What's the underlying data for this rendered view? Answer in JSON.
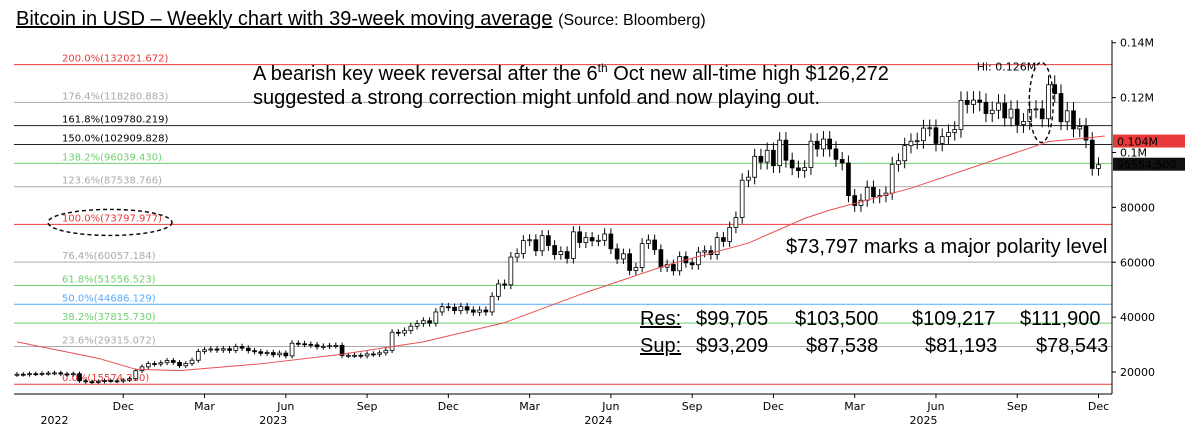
{
  "title": {
    "main": "Bitcoin in USD – Weekly chart with 39-week moving average",
    "source": "(Source: Bloomberg)"
  },
  "chart_data": {
    "type": "candlestick",
    "ylim": [
      12000,
      141000
    ],
    "y_ticks": [
      {
        "value": 140000,
        "label": "0.14M"
      },
      {
        "value": 120000,
        "label": "0.12M"
      },
      {
        "value": 100000,
        "label": "0.1M"
      },
      {
        "value": 80000,
        "label": "80000"
      },
      {
        "value": 60000,
        "label": "60000"
      },
      {
        "value": 40000,
        "label": "40000"
      },
      {
        "value": 20000,
        "label": "20000"
      }
    ],
    "x_months": [
      {
        "label": "Dec",
        "week": 17
      },
      {
        "label": "Mar",
        "week": 30
      },
      {
        "label": "Jun",
        "week": 43
      },
      {
        "label": "Sep",
        "week": 56
      },
      {
        "label": "Dec",
        "week": 69
      },
      {
        "label": "Mar",
        "week": 82
      },
      {
        "label": "Jun",
        "week": 95
      },
      {
        "label": "Sep",
        "week": 108
      },
      {
        "label": "Dec",
        "week": 121
      },
      {
        "label": "Mar",
        "week": 134
      },
      {
        "label": "Jun",
        "week": 147
      },
      {
        "label": "Sep",
        "week": 160
      },
      {
        "label": "Dec",
        "week": 173
      }
    ],
    "x_years": [
      {
        "label": "2022",
        "week": 6
      },
      {
        "label": "2023",
        "week": 41
      },
      {
        "label": "2024",
        "week": 93
      },
      {
        "label": "2025",
        "week": 145
      }
    ],
    "total_weeks": 175,
    "weekly_close": [
      19200,
      19100,
      19400,
      19300,
      19500,
      19600,
      19700,
      19300,
      19100,
      19400,
      16800,
      16500,
      16300,
      16600,
      16900,
      16800,
      16700,
      17100,
      17600,
      20500,
      21900,
      23100,
      22900,
      23400,
      24200,
      23500,
      22300,
      23100,
      24300,
      27500,
      28100,
      28400,
      28000,
      28500,
      27900,
      29300,
      28700,
      27800,
      27400,
      26800,
      27100,
      26300,
      26900,
      25900,
      30500,
      30300,
      30100,
      29900,
      29200,
      29400,
      29600,
      29700,
      26000,
      26100,
      26100,
      25900,
      26600,
      26500,
      27000,
      27900,
      34500,
      34200,
      35100,
      36700,
      37700,
      38700,
      37800,
      41900,
      43800,
      43600,
      42400,
      43800,
      42600,
      41800,
      42600,
      41900,
      47600,
      52100,
      51800,
      61900,
      63200,
      67900,
      68200,
      64200,
      69700,
      66100,
      62800,
      63900,
      61400,
      71100,
      67200,
      69000,
      67800,
      68000,
      70300,
      64900,
      61200,
      63100,
      57000,
      58100,
      66800,
      68100,
      64600,
      58200,
      59200,
      56900,
      62100,
      59800,
      59100,
      63700,
      64200,
      62800,
      69000,
      67600,
      72700,
      76300,
      89900,
      91000,
      98600,
      96500,
      100800,
      95200,
      104500,
      97200,
      94400,
      93400,
      94500,
      104100,
      101300,
      104900,
      101300,
      97500,
      96200,
      84300,
      80700,
      82600,
      87300,
      83900,
      84300,
      85200,
      95700,
      97000,
      102500,
      104100,
      104300,
      108900,
      109000,
      103300,
      105800,
      107300,
      108400,
      119000,
      117500,
      119100,
      118300,
      114200,
      115400,
      118000,
      112600,
      115800,
      110200,
      111300,
      115700,
      115900,
      112300,
      124700,
      121500,
      111200,
      115200,
      108600,
      109500,
      104500,
      94200,
      95554
    ],
    "ma_39w": {
      "weeks": [
        0,
        13,
        19,
        26,
        39,
        52,
        65,
        78,
        91,
        104,
        117,
        126,
        130,
        143,
        156,
        165,
        170,
        174
      ],
      "values": [
        31000,
        25000,
        21000,
        20500,
        23000,
        26500,
        31000,
        38000,
        49000,
        59000,
        67000,
        76000,
        79000,
        87000,
        97000,
        104000,
        105000,
        106000
      ]
    },
    "fibonacci_levels": [
      {
        "label": "200.0%(132021.672)",
        "value": 132021.672,
        "color": "#e83a3a"
      },
      {
        "label": "176.4%(118280.883)",
        "value": 118280.883,
        "color": "#aaaaaa"
      },
      {
        "label": "161.8%(109780.219)",
        "value": 109780.219,
        "color": "#222222"
      },
      {
        "label": "150.0%(102909.828)",
        "value": 102909.828,
        "color": "#222222"
      },
      {
        "label": "138.2%(96039.430)",
        "value": 96039.43,
        "color": "#6ed16e"
      },
      {
        "label": "123.6%(87538.766)",
        "value": 87538.766,
        "color": "#aaaaaa"
      },
      {
        "label": "100.0%(73797.977)",
        "value": 73797.977,
        "color": "#e83a3a"
      },
      {
        "label": "76.4%(60057.184)",
        "value": 60057.184,
        "color": "#aaaaaa"
      },
      {
        "label": "61.8%(51556.523)",
        "value": 51556.523,
        "color": "#6ed16e"
      },
      {
        "label": "50.0%(44686.129)",
        "value": 44686.129,
        "color": "#55aaff"
      },
      {
        "label": "38.2%(37815.730)",
        "value": 37815.73,
        "color": "#6ed16e"
      },
      {
        "label": "23.6%(29315.072)",
        "value": 29315.072,
        "color": "#aaaaaa"
      },
      {
        "label": "0.0%(15574.280)",
        "value": 15574.28,
        "color": "#e83a3a"
      }
    ],
    "price_tags": [
      {
        "label": "0.104M",
        "value": 104000,
        "bg": "#e83a3a",
        "fg": "#ffffff"
      },
      {
        "label": "95554.500",
        "value": 95554.5,
        "bg": "#111111",
        "fg": "#ffffff"
      }
    ],
    "high_marker": {
      "label": "Hi: 0.126M",
      "week": 164,
      "value": 126272
    }
  },
  "annotations": {
    "reversal_line1": "A bearish key week reversal after the 6",
    "reversal_sup": "th",
    "reversal_line1_end": " Oct new all-time high $126,272",
    "reversal_line2": "suggested a strong correction might unfold and now playing out.",
    "polarity": "$73,797 marks a major polarity level",
    "res_label": "Res:",
    "sup_label": "Sup:",
    "res_values": [
      "$99,705",
      "$103,500",
      "$109,217",
      "$111,900"
    ],
    "sup_values": [
      "$93,209",
      "$87,538",
      "$81,193",
      "$78,543"
    ]
  },
  "colors": {
    "up_candle": "#ffffff",
    "down_candle": "#000000",
    "ma_line": "#e85050",
    "ellipse": "#000000"
  }
}
